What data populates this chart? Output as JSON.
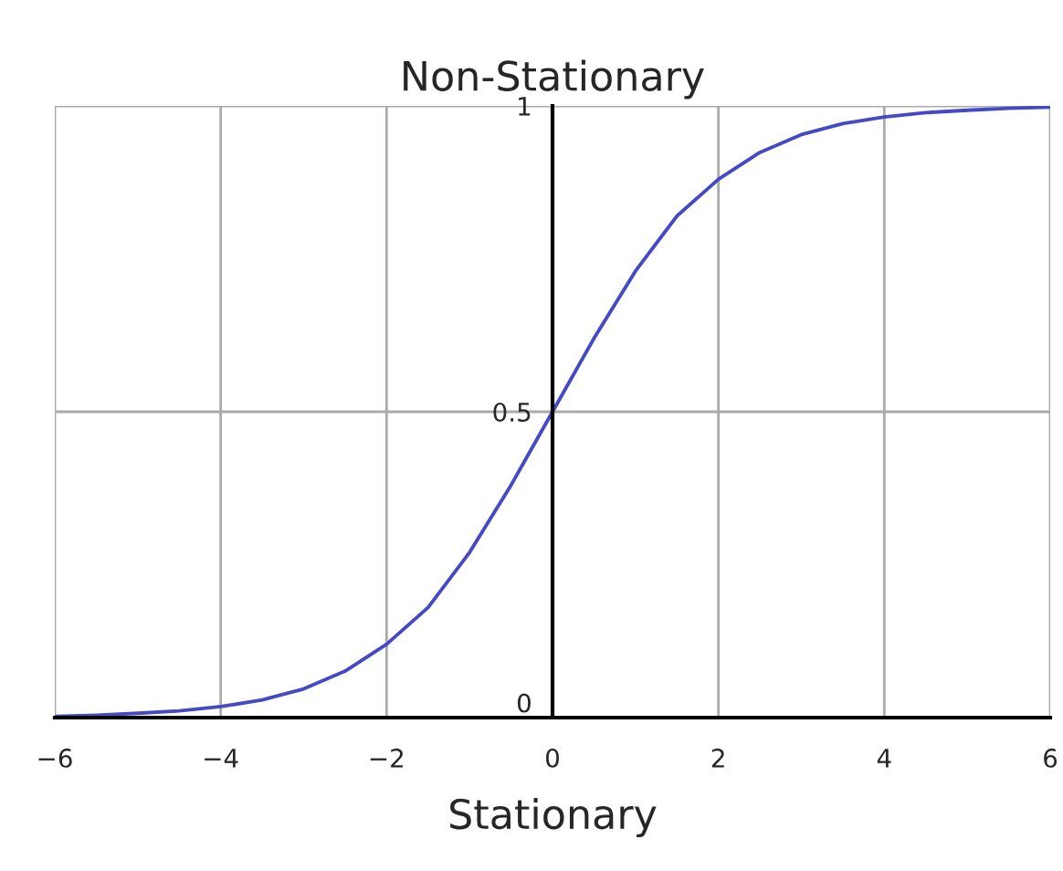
{
  "chart_data": {
    "type": "line",
    "title": "Non-Stationary",
    "xlabel": "Stationary",
    "x": [
      -6,
      -5.5,
      -5,
      -4.5,
      -4,
      -3.5,
      -3,
      -2.5,
      -2,
      -1.5,
      -1,
      -0.5,
      0,
      0.5,
      1,
      1.5,
      2,
      2.5,
      3,
      3.5,
      4,
      4.5,
      5,
      5.5,
      6
    ],
    "series": [
      {
        "color": "#4449c4",
        "values": [
          0.002,
          0.004,
          0.007,
          0.011,
          0.018,
          0.029,
          0.047,
          0.076,
          0.12,
          0.18,
          0.27,
          0.38,
          0.5,
          0.62,
          0.73,
          0.82,
          0.88,
          0.924,
          0.953,
          0.971,
          0.982,
          0.989,
          0.993,
          0.996,
          0.998
        ]
      }
    ],
    "xlim": [
      -6,
      6
    ],
    "ylim": [
      0,
      1
    ],
    "xticks": [
      {
        "value": -6,
        "label": "−6"
      },
      {
        "value": -4,
        "label": "−4"
      },
      {
        "value": -2,
        "label": "−2"
      },
      0,
      2,
      4,
      6
    ],
    "yticks": [
      0,
      0.5,
      1
    ],
    "grid": true,
    "marker": "none",
    "line_style": "solid"
  }
}
